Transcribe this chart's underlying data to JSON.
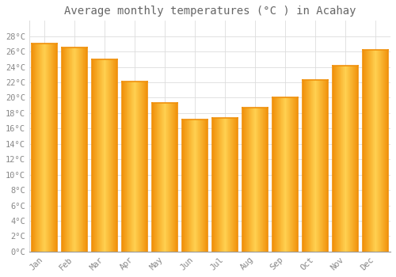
{
  "title": "Average monthly temperatures (°C ) in Acahay",
  "months": [
    "Jan",
    "Feb",
    "Mar",
    "Apr",
    "May",
    "Jun",
    "Jul",
    "Aug",
    "Sep",
    "Oct",
    "Nov",
    "Dec"
  ],
  "values": [
    27.0,
    26.5,
    25.0,
    22.1,
    19.3,
    17.2,
    17.4,
    18.7,
    20.0,
    22.3,
    24.2,
    26.2
  ],
  "bar_color_center": "#FFD050",
  "bar_color_edge": "#F0900A",
  "background_color": "#FFFFFF",
  "grid_color": "#DDDDDD",
  "ylim": [
    0,
    30
  ],
  "yticks": [
    0,
    2,
    4,
    6,
    8,
    10,
    12,
    14,
    16,
    18,
    20,
    22,
    24,
    26,
    28
  ],
  "title_fontsize": 10,
  "tick_fontsize": 7.5,
  "title_color": "#666666",
  "tick_color": "#888888",
  "font_family": "monospace",
  "bar_width": 0.85
}
